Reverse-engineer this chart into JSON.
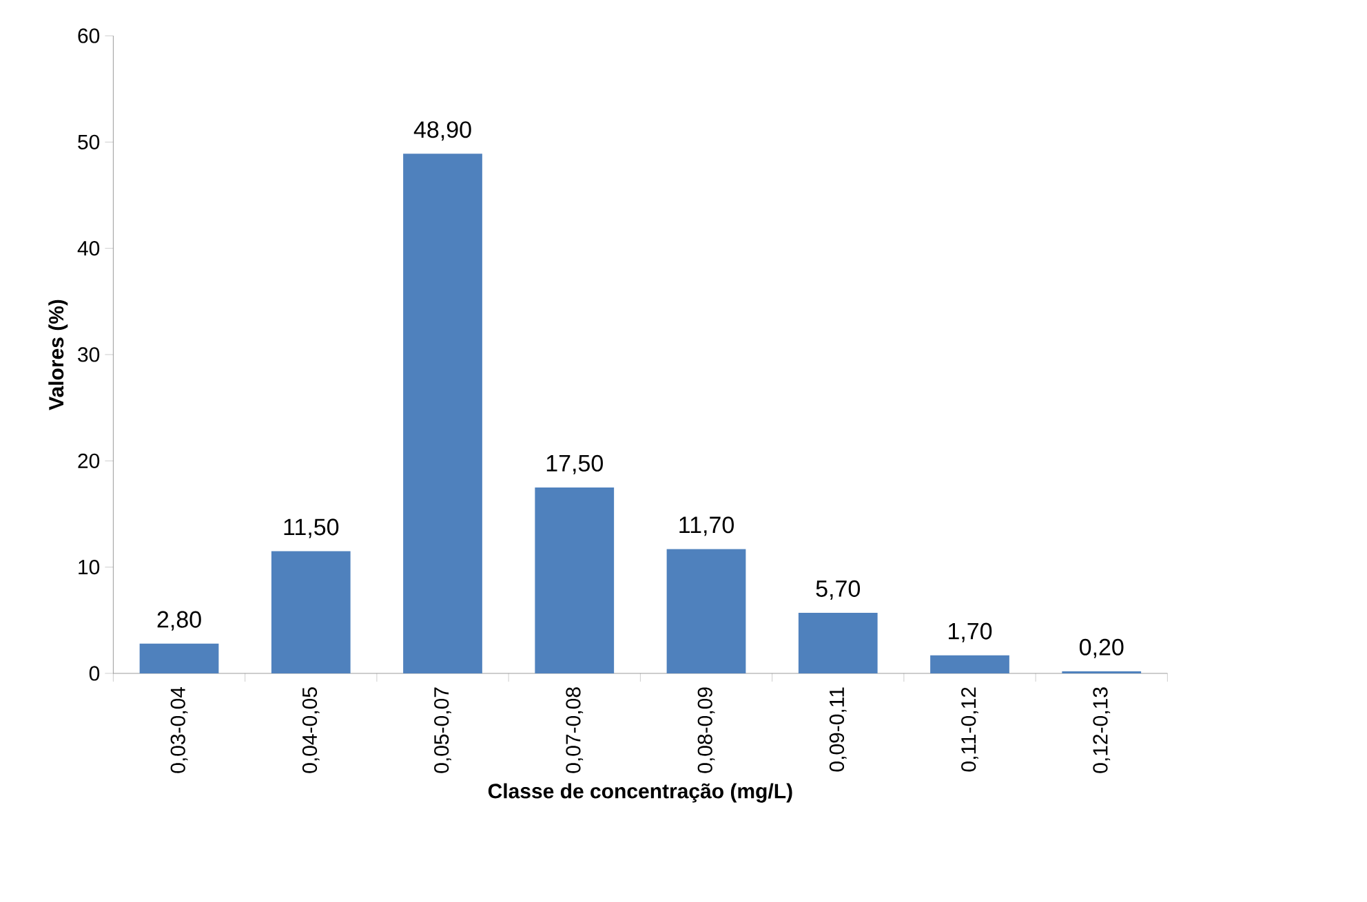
{
  "chart_data": {
    "type": "bar",
    "xlabel": "Classe de concentração (mg/L)",
    "ylabel": "Valores (%)",
    "categories": [
      "0,03-0,04",
      "0,04-0,05",
      "0,05-0,07",
      "0,07-0,08",
      "0,08-0,09",
      "0,09-0,11",
      "0,11-0,12",
      "0,12-0,13"
    ],
    "values": [
      2.8,
      11.5,
      48.9,
      17.5,
      11.7,
      5.7,
      1.7,
      0.2
    ],
    "value_labels": [
      "2,80",
      "11,50",
      "48,90",
      "17,50",
      "11,70",
      "5,70",
      "1,70",
      "0,20"
    ],
    "color": "#4f81bd",
    "ylim": [
      0,
      60
    ],
    "yticks": [
      0,
      10,
      20,
      30,
      40,
      50,
      60
    ]
  }
}
